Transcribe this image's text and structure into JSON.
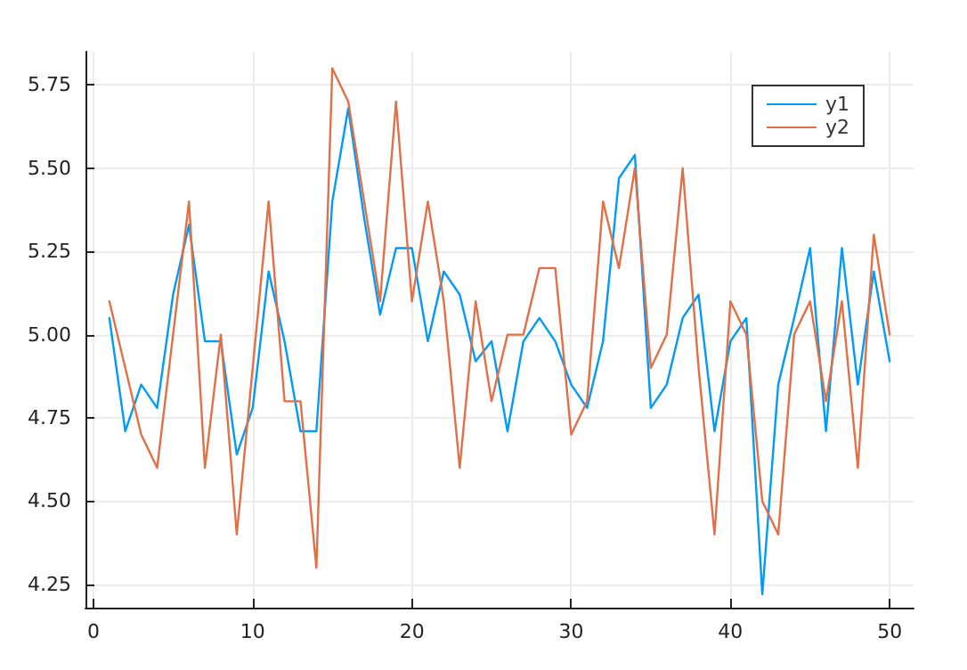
{
  "chart_data": {
    "type": "line",
    "x": [
      1,
      2,
      3,
      4,
      5,
      6,
      7,
      8,
      9,
      10,
      11,
      12,
      13,
      14,
      15,
      16,
      17,
      18,
      19,
      20,
      21,
      22,
      23,
      24,
      25,
      26,
      27,
      28,
      29,
      30,
      31,
      32,
      33,
      34,
      35,
      36,
      37,
      38,
      39,
      40,
      41,
      42,
      43,
      44,
      45,
      46,
      47,
      48,
      49,
      50
    ],
    "series": [
      {
        "name": "y1",
        "color": "#009af9",
        "values": [
          5.05,
          4.71,
          4.85,
          4.78,
          5.12,
          5.33,
          4.98,
          4.98,
          4.64,
          4.78,
          5.19,
          4.98,
          4.71,
          4.71,
          5.4,
          5.68,
          5.35,
          5.06,
          5.26,
          5.26,
          4.98,
          5.19,
          5.12,
          4.92,
          4.98,
          4.71,
          4.98,
          5.05,
          4.98,
          4.85,
          4.78,
          4.98,
          5.47,
          5.54,
          4.78,
          4.85,
          5.05,
          5.12,
          4.71,
          4.98,
          5.05,
          4.22,
          4.85,
          5.05,
          5.26,
          4.71,
          5.26,
          4.85,
          5.19,
          4.92
        ]
      },
      {
        "name": "y2",
        "color": "#e26f46",
        "values": [
          5.1,
          4.9,
          4.7,
          4.6,
          5.0,
          5.4,
          4.6,
          5.0,
          4.4,
          4.9,
          5.4,
          4.8,
          4.8,
          4.3,
          5.8,
          5.7,
          5.4,
          5.1,
          5.7,
          5.1,
          5.4,
          5.1,
          4.6,
          5.1,
          4.8,
          5.0,
          5.0,
          5.2,
          5.2,
          4.7,
          4.8,
          5.4,
          5.2,
          5.5,
          4.9,
          5.0,
          5.5,
          4.9,
          4.4,
          5.1,
          5.0,
          4.5,
          4.4,
          5.0,
          5.1,
          4.8,
          5.1,
          4.6,
          5.3,
          5.0
        ]
      }
    ],
    "xlim": [
      -0.5,
      51.5
    ],
    "xticks": [
      0,
      10,
      20,
      30,
      40,
      50
    ],
    "ylim": [
      4.18,
      5.85
    ],
    "yticks": [
      {
        "value": 4.25,
        "label": "4.25"
      },
      {
        "value": 4.5,
        "label": "4.50"
      },
      {
        "value": 4.75,
        "label": "4.75"
      },
      {
        "value": 5,
        "label": "5.00"
      },
      {
        "value": 5.25,
        "label": "5.25"
      },
      {
        "value": 5.5,
        "label": "5.50"
      },
      {
        "value": 5.75,
        "label": "5.75"
      }
    ],
    "grid": true,
    "legend": "top right",
    "marker": "none",
    "line_style": "solid"
  }
}
